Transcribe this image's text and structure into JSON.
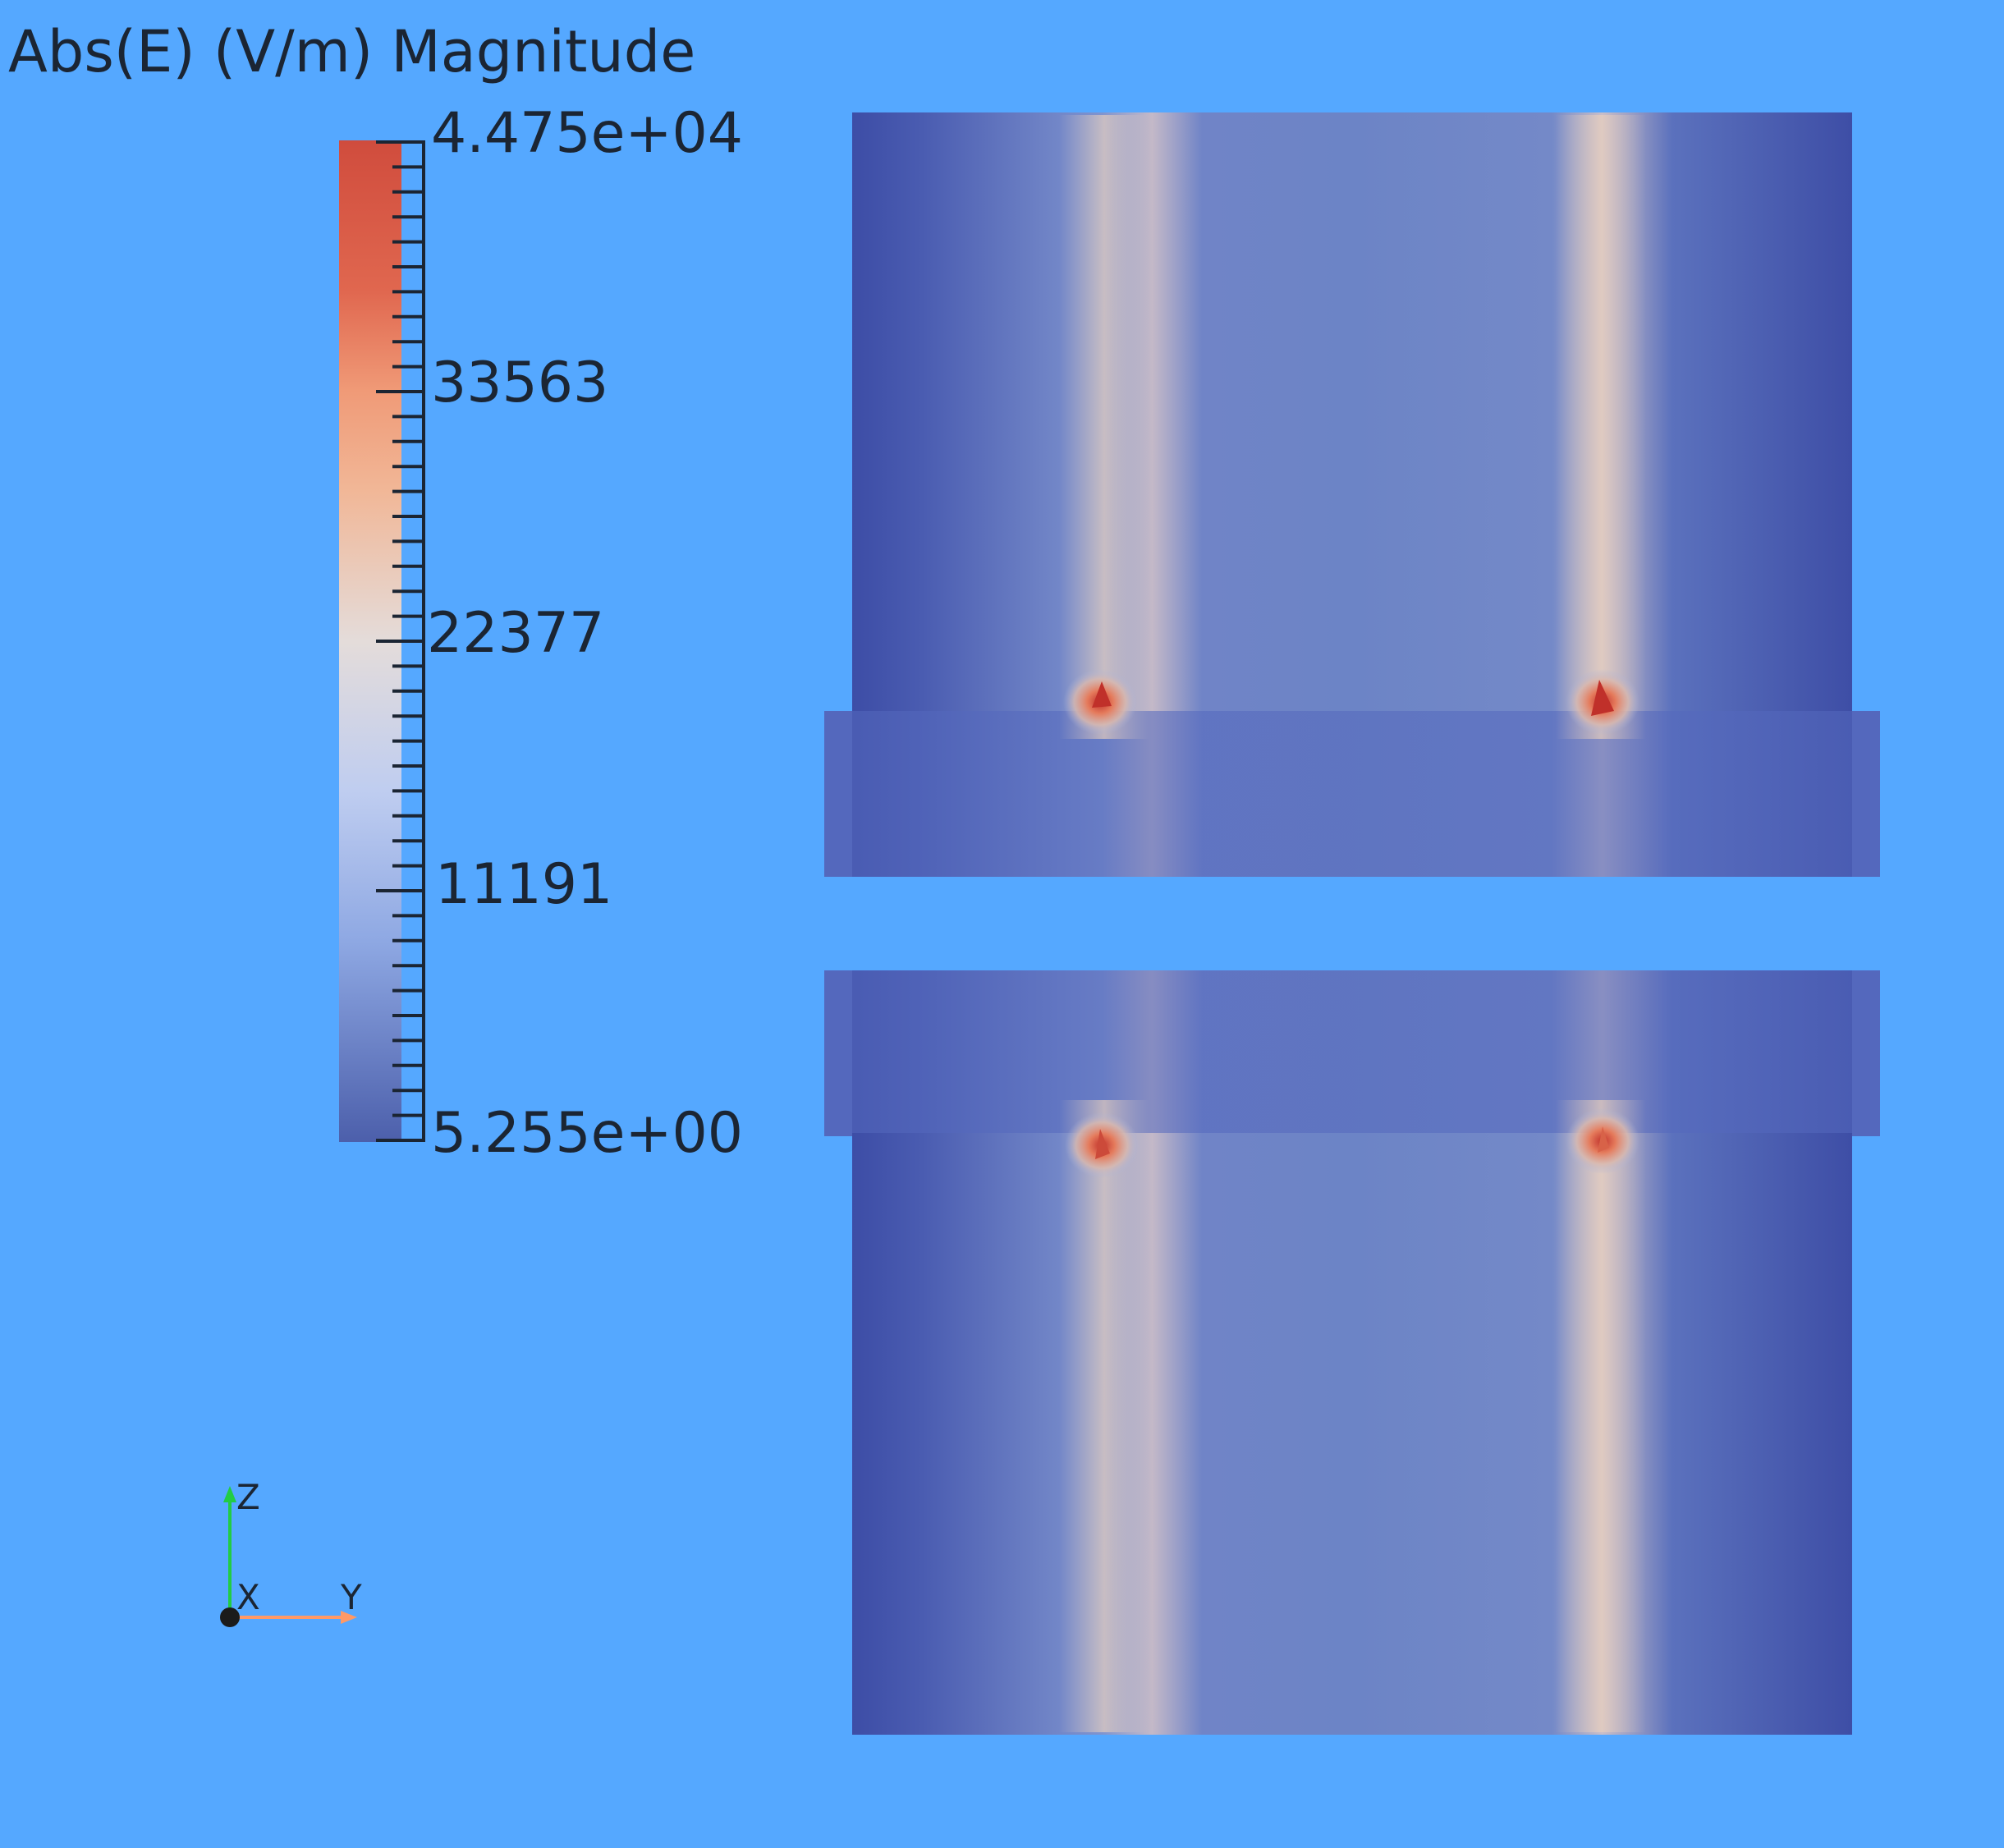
{
  "scalar_bar": {
    "title": "Abs(E) (V/m) Magnitude",
    "labels": [
      "4.475e+04",
      "33563",
      "22377",
      "11191",
      "5.255e+00"
    ],
    "colormap": [
      "#3b4cc0",
      "#6788ee",
      "#9abbff",
      "#c9d7f0",
      "#edd1c2",
      "#f7a789",
      "#e26952",
      "#b40426"
    ]
  },
  "field_view": {
    "background": "#55a8ff",
    "domain_color": "#5a72c4",
    "description_objects": [
      "upper-body",
      "lower-body"
    ]
  },
  "orientation_axes": {
    "labels": [
      "Z",
      "X",
      "Y"
    ],
    "colors": {
      "Z": "#22cc44",
      "Y": "#ff9966",
      "X": "#1b1b1b"
    }
  }
}
